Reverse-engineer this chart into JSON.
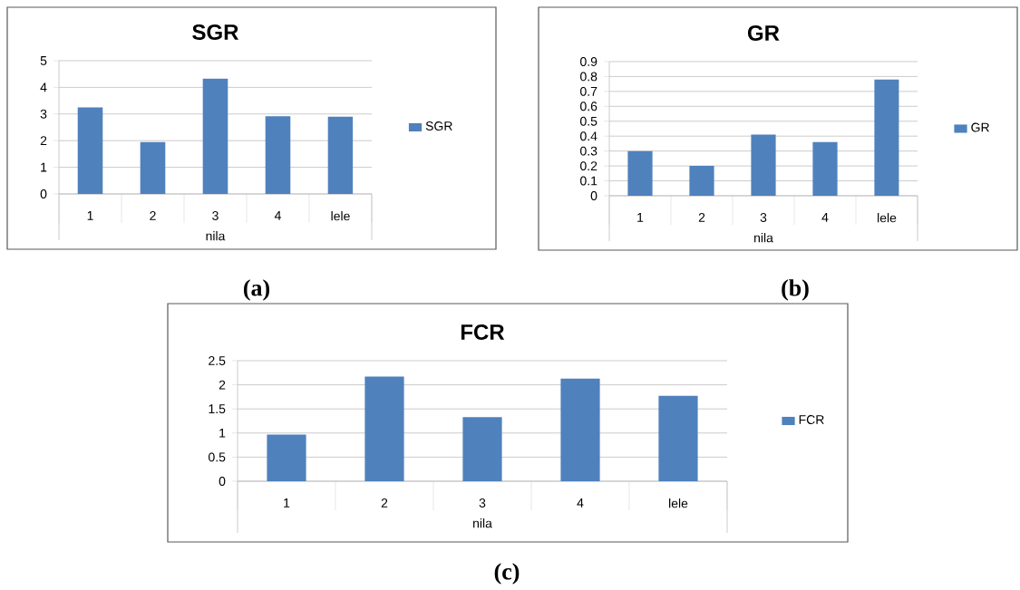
{
  "chart_data": [
    {
      "type": "bar",
      "title": "SGR",
      "categories": [
        "1",
        "2",
        "3",
        "4",
        "lele"
      ],
      "xlabel": "nila",
      "series": [
        {
          "name": "SGR",
          "color": "#4f81bd",
          "values": [
            3.25,
            1.95,
            4.33,
            2.92,
            2.9
          ]
        }
      ],
      "ylim": [
        0,
        5
      ],
      "yticks": [
        0,
        1,
        2,
        3,
        4,
        5
      ],
      "grid": "y",
      "legend": "right",
      "annotations": [
        "(a)"
      ]
    },
    {
      "type": "bar",
      "title": "GR",
      "categories": [
        "1",
        "2",
        "3",
        "4",
        "lele"
      ],
      "xlabel": "nila",
      "series": [
        {
          "name": "GR",
          "color": "#4f81bd",
          "values": [
            0.3,
            0.2,
            0.41,
            0.36,
            0.78
          ]
        }
      ],
      "ylim": [
        0,
        0.9
      ],
      "yticks": [
        0,
        0.1,
        0.2,
        0.3,
        0.4,
        0.5,
        0.6,
        0.7,
        0.8,
        0.9
      ],
      "grid": "y",
      "legend": "right",
      "annotations": [
        "(b)"
      ]
    },
    {
      "type": "bar",
      "title": "FCR",
      "categories": [
        "1",
        "2",
        "3",
        "4",
        "lele"
      ],
      "xlabel": "nila",
      "series": [
        {
          "name": "FCR",
          "color": "#4f81bd",
          "values": [
            0.97,
            2.17,
            1.33,
            2.13,
            1.77
          ]
        }
      ],
      "ylim": [
        0,
        2.5
      ],
      "yticks": [
        0,
        0.5,
        1,
        1.5,
        2,
        2.5
      ],
      "grid": "y",
      "legend": "right",
      "annotations": [
        "(c)"
      ]
    }
  ]
}
